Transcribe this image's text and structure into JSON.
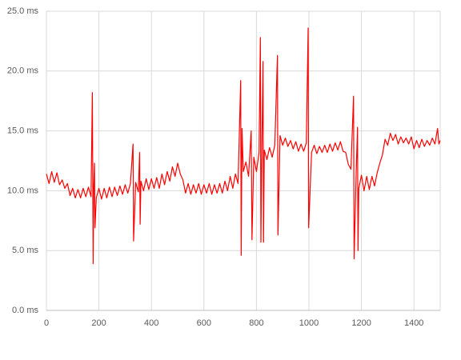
{
  "chart_data": {
    "type": "line",
    "color": "#ff0000",
    "grid": true,
    "xlim": [
      0,
      1500
    ],
    "xticks": [
      0,
      200,
      400,
      600,
      800,
      1000,
      1200,
      1400
    ],
    "ylim": [
      0,
      25
    ],
    "yticks": [
      {
        "value": 0,
        "label": "0.0 ms"
      },
      {
        "value": 5,
        "label": "5.0 ms"
      },
      {
        "value": 10,
        "label": "10.0 ms"
      },
      {
        "value": 15,
        "label": "15.0 ms"
      },
      {
        "value": 20,
        "label": "20.0 ms"
      },
      {
        "value": 25,
        "label": "25.0 ms"
      }
    ],
    "x": [
      0,
      10,
      20,
      30,
      40,
      50,
      60,
      70,
      80,
      90,
      100,
      110,
      120,
      130,
      140,
      150,
      160,
      170,
      175,
      178,
      180,
      183,
      185,
      190,
      200,
      210,
      220,
      230,
      240,
      250,
      260,
      270,
      280,
      290,
      300,
      310,
      320,
      330,
      332,
      340,
      350,
      355,
      357,
      360,
      370,
      380,
      390,
      400,
      410,
      420,
      430,
      440,
      450,
      460,
      470,
      480,
      490,
      500,
      510,
      520,
      530,
      540,
      550,
      560,
      570,
      580,
      590,
      600,
      610,
      620,
      630,
      640,
      650,
      660,
      670,
      680,
      690,
      700,
      710,
      720,
      730,
      740,
      742,
      745,
      750,
      760,
      770,
      780,
      783,
      790,
      800,
      810,
      815,
      817,
      820,
      825,
      827,
      830,
      840,
      850,
      860,
      870,
      880,
      882,
      890,
      900,
      910,
      920,
      930,
      940,
      950,
      960,
      970,
      980,
      990,
      997,
      999,
      1010,
      1020,
      1030,
      1040,
      1050,
      1060,
      1070,
      1080,
      1090,
      1100,
      1110,
      1120,
      1130,
      1140,
      1150,
      1160,
      1170,
      1172,
      1180,
      1185,
      1187,
      1190,
      1200,
      1210,
      1220,
      1230,
      1240,
      1250,
      1260,
      1270,
      1280,
      1290,
      1300,
      1310,
      1320,
      1330,
      1340,
      1350,
      1360,
      1370,
      1380,
      1390,
      1400,
      1410,
      1420,
      1430,
      1440,
      1450,
      1460,
      1470,
      1480,
      1490,
      1495,
      1500
    ],
    "values": [
      11.4,
      10.6,
      11.6,
      10.7,
      11.5,
      10.5,
      10.9,
      10.2,
      10.6,
      9.6,
      10.2,
      9.4,
      10.1,
      9.4,
      10.2,
      9.5,
      10.3,
      9.5,
      18.2,
      3.9,
      10.1,
      12.3,
      6.9,
      9.4,
      10.2,
      9.3,
      10.2,
      9.4,
      10.3,
      9.5,
      10.3,
      9.6,
      10.4,
      9.7,
      10.5,
      9.8,
      10.6,
      13.9,
      5.8,
      10.7,
      9.9,
      13.2,
      7.2,
      10.8,
      10.0,
      11.0,
      10.1,
      11.0,
      10.2,
      11.1,
      10.2,
      11.4,
      10.5,
      11.6,
      10.8,
      12.0,
      11.2,
      12.3,
      11.4,
      10.9,
      9.8,
      10.6,
      9.7,
      10.5,
      9.8,
      10.6,
      9.7,
      10.5,
      9.8,
      10.6,
      9.7,
      10.5,
      9.8,
      10.6,
      9.8,
      10.8,
      10.0,
      11.2,
      10.2,
      11.4,
      10.6,
      19.2,
      4.6,
      15.2,
      11.6,
      12.4,
      11.2,
      15.0,
      5.9,
      12.8,
      11.6,
      13.2,
      22.8,
      5.7,
      12.2,
      20.8,
      5.7,
      13.4,
      12.6,
      13.6,
      12.8,
      13.8,
      21.3,
      6.3,
      14.6,
      13.8,
      14.4,
      13.7,
      14.2,
      13.5,
      14.1,
      13.3,
      13.9,
      13.3,
      14.0,
      23.6,
      6.9,
      13.2,
      13.8,
      13.1,
      13.7,
      13.2,
      13.8,
      13.2,
      13.9,
      13.3,
      14.0,
      13.4,
      14.1,
      13.3,
      13.2,
      12.2,
      11.8,
      17.9,
      4.3,
      11.5,
      15.3,
      5.0,
      10.2,
      11.3,
      10.0,
      11.2,
      10.1,
      11.2,
      10.4,
      11.5,
      12.3,
      13.0,
      14.3,
      13.8,
      14.8,
      14.2,
      14.7,
      13.9,
      14.5,
      14.0,
      14.4,
      13.9,
      14.5,
      13.5,
      14.2,
      13.6,
      14.3,
      13.7,
      14.2,
      13.8,
      14.4,
      13.9,
      15.2,
      13.9,
      14.2
    ]
  }
}
